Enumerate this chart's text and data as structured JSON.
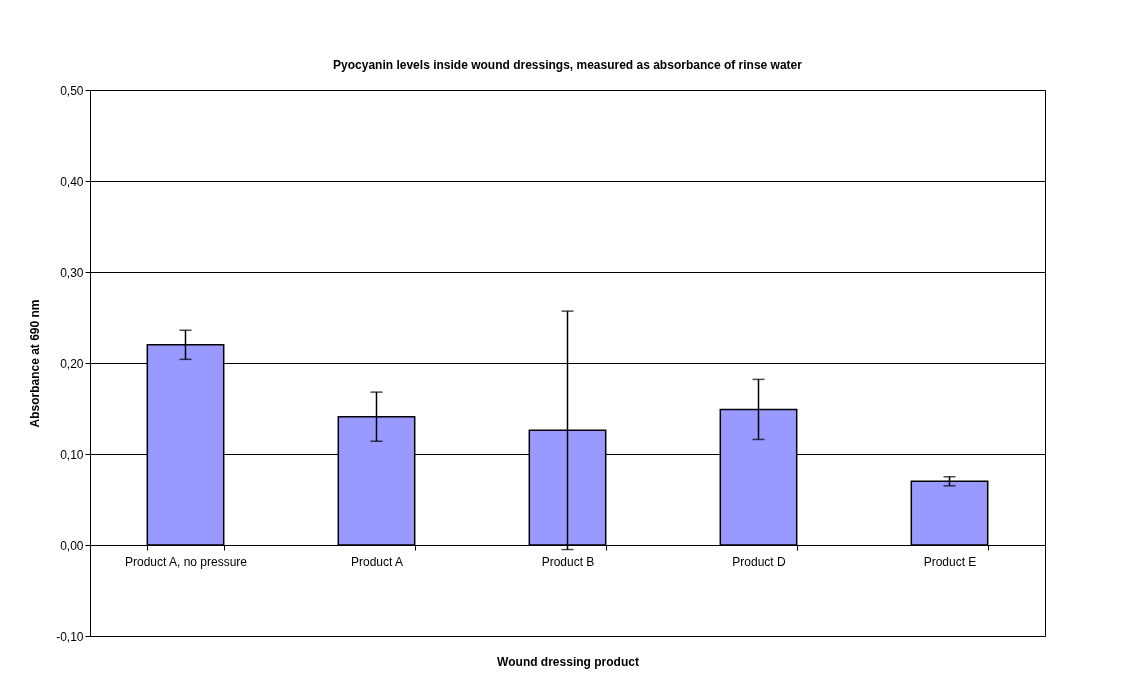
{
  "chart_data": {
    "type": "bar",
    "title": "Pyocyanin levels inside wound dressings, measured as absorbance of rinse water",
    "xlabel": "Wound dressing product",
    "ylabel": "Absorbance at 690 nm",
    "categories": [
      "Product A, no pressure",
      "Product A",
      "Product B",
      "Product D",
      "Product E"
    ],
    "values": [
      0.22,
      0.141,
      0.126,
      0.149,
      0.07
    ],
    "errors": [
      0.016,
      0.027,
      0.131,
      0.033,
      0.005
    ],
    "color": "#9999ff",
    "ylim": [
      -0.1,
      0.5
    ],
    "yticks": [
      {
        "value": -0.1,
        "label": "-0,10"
      },
      {
        "value": 0,
        "label": "0,00"
      },
      {
        "value": 0.1,
        "label": "0,10"
      },
      {
        "value": 0.2,
        "label": "0,20"
      },
      {
        "value": 0.3,
        "label": "0,30"
      },
      {
        "value": 0.4,
        "label": "0,40"
      },
      {
        "value": 0.5,
        "label": "0,50"
      }
    ],
    "grid": "y"
  }
}
